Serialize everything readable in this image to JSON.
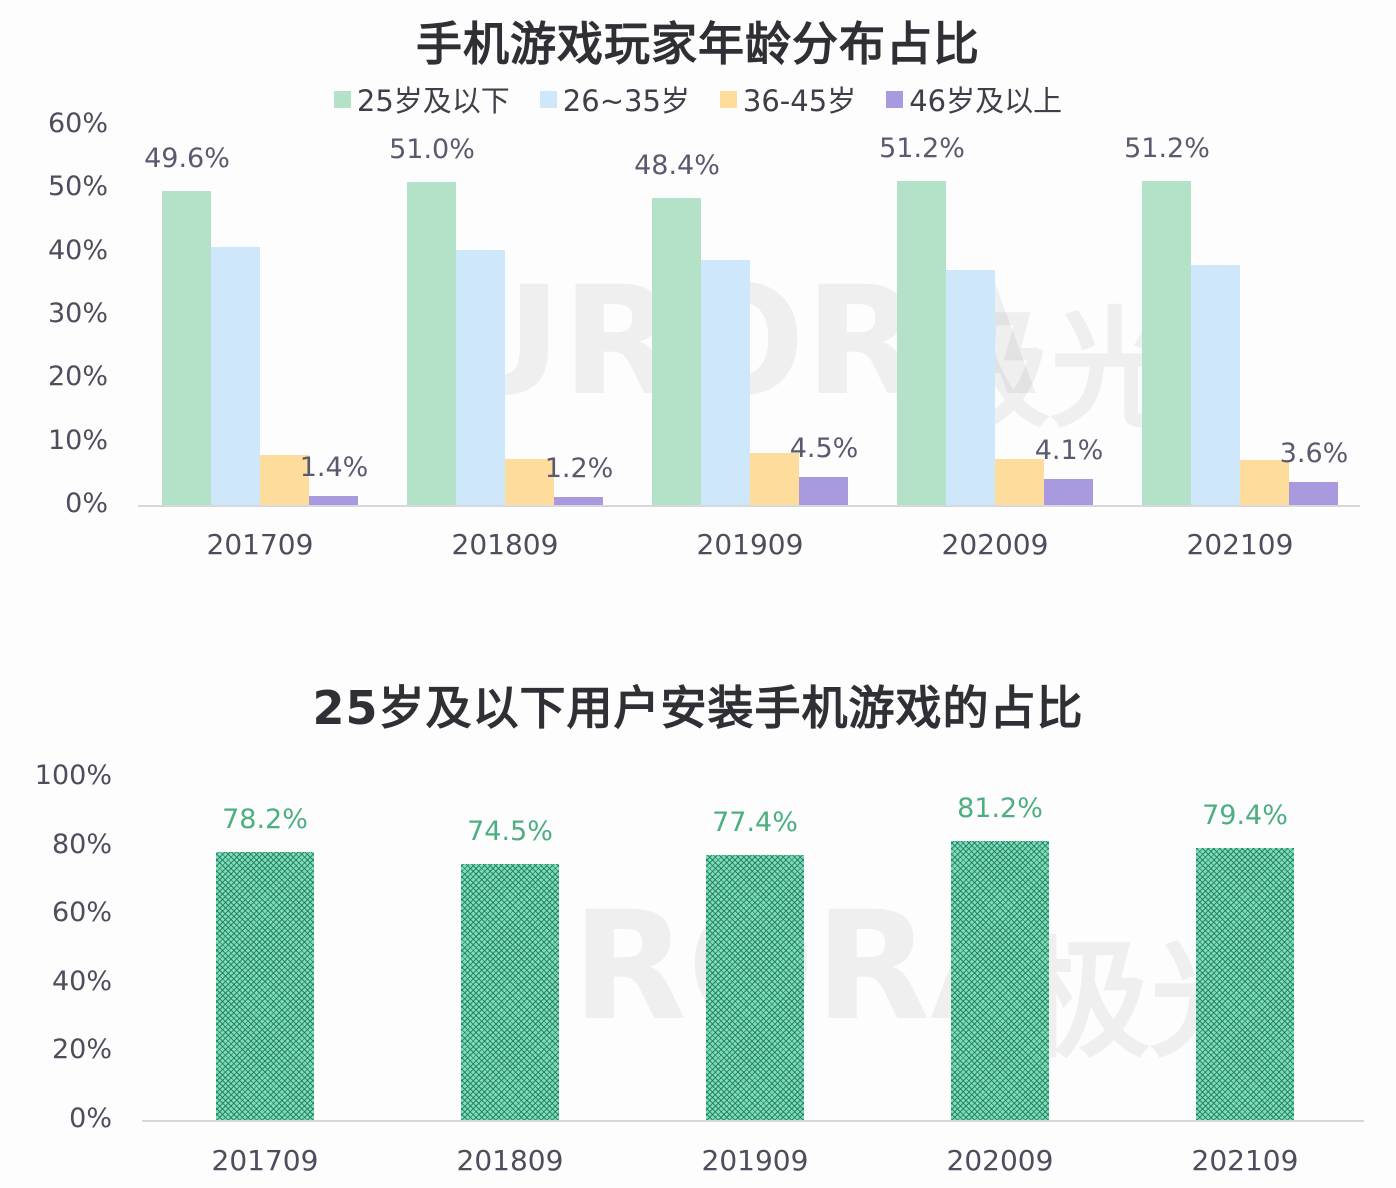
{
  "chart_data": [
    {
      "type": "bar",
      "title": "手机游戏玩家年龄分布占比",
      "categories": [
        "201709",
        "201809",
        "201909",
        "202009",
        "202109"
      ],
      "series": [
        {
          "name": "25岁及以下",
          "color": "#b3e2c8",
          "values": [
            49.6,
            51.0,
            48.4,
            51.2,
            51.2
          ],
          "labels": [
            "49.6%",
            "51.0%",
            "48.4%",
            "51.2%",
            "51.2%"
          ]
        },
        {
          "name": "26~35岁",
          "color": "#cfe7fb",
          "values": [
            40.8,
            40.3,
            38.7,
            37.1,
            37.9
          ],
          "labels": []
        },
        {
          "name": "36-45岁",
          "color": "#fddc9c",
          "values": [
            7.9,
            7.3,
            8.2,
            7.3,
            7.1
          ],
          "labels": []
        },
        {
          "name": "46岁及以上",
          "color": "#a99ae0",
          "values": [
            1.4,
            1.2,
            4.5,
            4.1,
            3.6
          ],
          "labels": [
            "1.4%",
            "1.2%",
            "4.5%",
            "4.1%",
            "3.6%"
          ]
        }
      ],
      "yticks": [
        "0%",
        "10%",
        "20%",
        "30%",
        "40%",
        "50%",
        "60%"
      ],
      "ylim": [
        0,
        60
      ],
      "xlabel": "",
      "ylabel": "",
      "legend_position": "top",
      "grid": false
    },
    {
      "type": "bar",
      "title": "25岁及以下用户安装手机游戏的占比",
      "categories": [
        "201709",
        "201809",
        "201909",
        "202009",
        "202109"
      ],
      "values": [
        78.2,
        74.5,
        77.4,
        81.2,
        79.4
      ],
      "labels": [
        "78.2%",
        "74.5%",
        "77.4%",
        "81.2%",
        "79.4%"
      ],
      "color": "#5fcfa0",
      "yticks": [
        "0%",
        "20%",
        "40%",
        "60%",
        "80%",
        "100%"
      ],
      "ylim": [
        0,
        100
      ],
      "xlabel": "",
      "ylabel": "",
      "grid": false
    }
  ],
  "watermark": {
    "text": "URORA",
    "cn": "极光"
  }
}
